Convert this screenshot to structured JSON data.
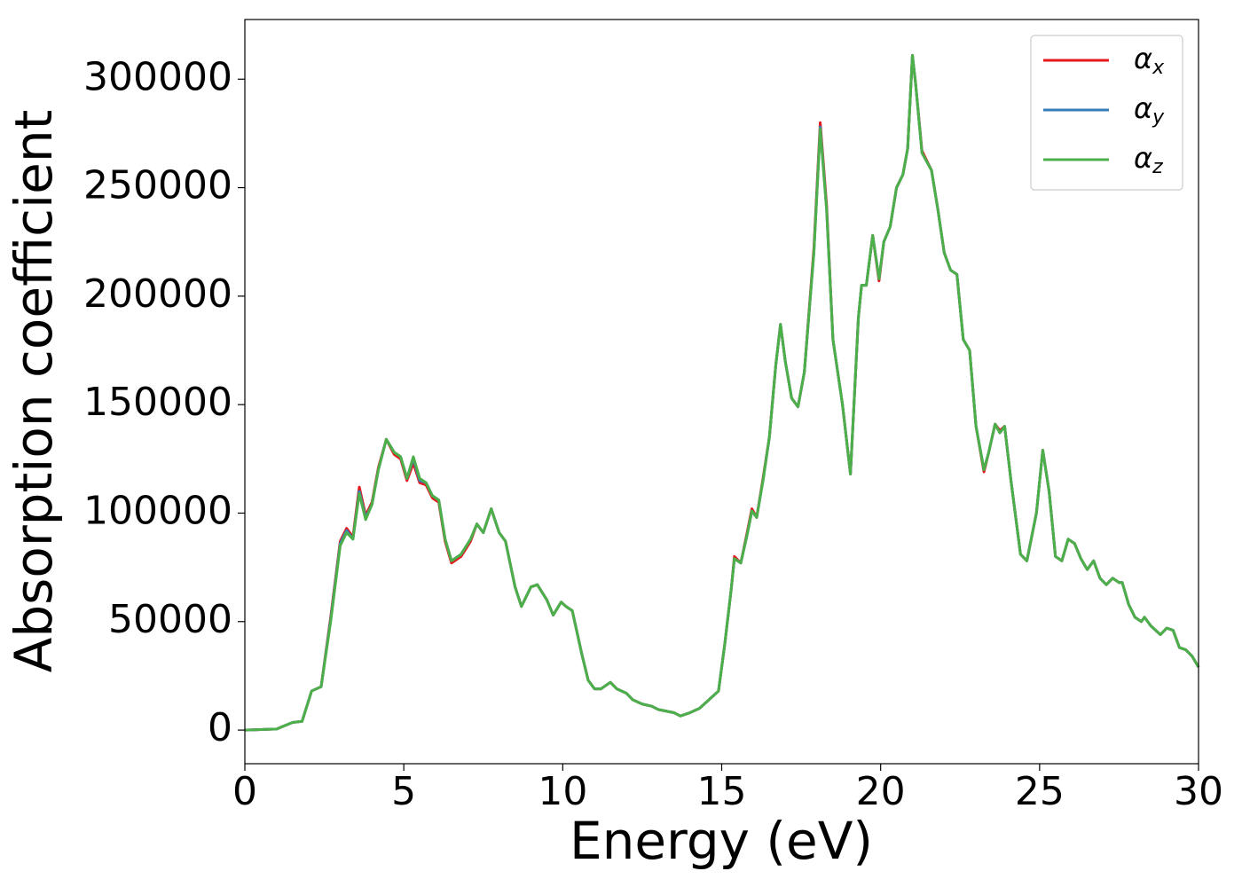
{
  "chart_data": {
    "type": "line",
    "xlabel": "Energy (eV)",
    "ylabel": "Absorption coefficient",
    "x": [
      0,
      1,
      1.5,
      1.8,
      2.1,
      2.4,
      2.7,
      3.0,
      3.2,
      3.4,
      3.6,
      3.8,
      4.0,
      4.2,
      4.45,
      4.7,
      4.9,
      5.1,
      5.3,
      5.5,
      5.7,
      5.9,
      6.1,
      6.3,
      6.5,
      6.8,
      7.1,
      7.3,
      7.5,
      7.75,
      8.0,
      8.2,
      8.5,
      8.7,
      9.0,
      9.2,
      9.5,
      9.7,
      9.95,
      10.1,
      10.3,
      10.6,
      10.8,
      11.0,
      11.2,
      11.5,
      11.7,
      12.0,
      12.2,
      12.5,
      12.8,
      13.0,
      13.5,
      13.7,
      14.0,
      14.3,
      14.6,
      14.9,
      15.1,
      15.3,
      15.4,
      15.6,
      15.8,
      15.95,
      16.1,
      16.3,
      16.5,
      16.7,
      16.85,
      17.0,
      17.2,
      17.4,
      17.6,
      17.9,
      18.1,
      18.3,
      18.5,
      18.8,
      19.05,
      19.3,
      19.4,
      19.55,
      19.75,
      19.95,
      20.1,
      20.3,
      20.5,
      20.7,
      20.85,
      21.0,
      21.1,
      21.3,
      21.6,
      21.8,
      22.0,
      22.2,
      22.4,
      22.6,
      22.8,
      23.0,
      23.25,
      23.4,
      23.6,
      23.75,
      23.9,
      24.1,
      24.4,
      24.6,
      24.9,
      25.1,
      25.3,
      25.5,
      25.7,
      25.9,
      26.1,
      26.3,
      26.5,
      26.7,
      26.9,
      27.1,
      27.3,
      27.5,
      27.6,
      27.8,
      28.0,
      28.2,
      28.3,
      28.5,
      28.8,
      29.0,
      29.2,
      29.4,
      29.6,
      29.8,
      30.0
    ],
    "series": [
      {
        "name": "αx",
        "color": "#e41a1c",
        "values": [
          0,
          500,
          3500,
          4000,
          18000,
          20000,
          52000,
          87000,
          93000,
          89000,
          112000,
          99000,
          105000,
          121000,
          134000,
          127000,
          125000,
          115000,
          123000,
          114000,
          113000,
          107000,
          105000,
          87000,
          77000,
          80000,
          87000,
          95000,
          91000,
          102000,
          91000,
          87000,
          66000,
          57000,
          66000,
          67000,
          60000,
          53000,
          59000,
          57000,
          55000,
          35000,
          23000,
          19000,
          19000,
          22000,
          19000,
          17000,
          14000,
          12000,
          11000,
          9500,
          8000,
          6500,
          8000,
          10000,
          14000,
          18000,
          40000,
          65000,
          80000,
          77000,
          91000,
          102000,
          98000,
          116000,
          135000,
          168000,
          187000,
          170000,
          153000,
          149000,
          165000,
          222000,
          280000,
          242000,
          180000,
          150000,
          118000,
          190000,
          205000,
          205000,
          228000,
          207000,
          225000,
          232000,
          250000,
          256000,
          268000,
          311000,
          298000,
          267000,
          258000,
          240000,
          220000,
          212000,
          210000,
          180000,
          175000,
          140000,
          119000,
          128000,
          141000,
          138000,
          140000,
          115000,
          81000,
          78000,
          100000,
          129000,
          110000,
          80000,
          78000,
          88000,
          86000,
          79000,
          74000,
          78000,
          70000,
          67000,
          70000,
          68000,
          68000,
          58000,
          52000,
          50000,
          52000,
          48000,
          44000,
          47000,
          46000,
          38000,
          37000,
          34000,
          29000
        ]
      },
      {
        "name": "αy",
        "color": "#377eb8",
        "values": [
          0,
          500,
          3500,
          4000,
          18000,
          20000,
          51000,
          86000,
          92000,
          88000,
          110000,
          98000,
          104000,
          120000,
          134000,
          128000,
          126000,
          116000,
          125000,
          115000,
          114000,
          108000,
          106000,
          88000,
          78000,
          81000,
          88000,
          95000,
          91000,
          102000,
          91000,
          87000,
          66000,
          57000,
          66000,
          67000,
          60000,
          53000,
          59000,
          57000,
          55000,
          35000,
          23000,
          19000,
          19000,
          22000,
          19000,
          17000,
          14000,
          12000,
          11000,
          9500,
          8000,
          6500,
          8000,
          10000,
          14000,
          18000,
          40000,
          65000,
          79000,
          77000,
          90000,
          101000,
          98000,
          115000,
          135000,
          168000,
          187000,
          170000,
          153000,
          149000,
          165000,
          220000,
          278000,
          240000,
          180000,
          150000,
          118000,
          190000,
          205000,
          205000,
          228000,
          208000,
          225000,
          232000,
          250000,
          256000,
          268000,
          311000,
          298000,
          266000,
          258000,
          240000,
          220000,
          212000,
          210000,
          180000,
          175000,
          140000,
          120000,
          128000,
          141000,
          137000,
          140000,
          115000,
          81000,
          78000,
          100000,
          129000,
          110000,
          80000,
          78000,
          88000,
          86000,
          79000,
          74000,
          78000,
          70000,
          67000,
          70000,
          68000,
          68000,
          58000,
          52000,
          50000,
          52000,
          48000,
          44000,
          47000,
          46000,
          38000,
          37000,
          34000,
          29000
        ]
      },
      {
        "name": "αz",
        "color": "#4daf4a",
        "values": [
          0,
          500,
          3500,
          4000,
          18000,
          20000,
          50000,
          85000,
          91000,
          88000,
          109000,
          97000,
          104000,
          120000,
          134000,
          128000,
          126000,
          116000,
          126000,
          116000,
          114000,
          108000,
          106000,
          88000,
          78000,
          81000,
          88000,
          95000,
          91000,
          102000,
          91000,
          87000,
          66000,
          57000,
          66000,
          67000,
          60000,
          53000,
          59000,
          57000,
          55000,
          35000,
          23000,
          19000,
          19000,
          22000,
          19000,
          17000,
          14000,
          12000,
          11000,
          9500,
          8000,
          6500,
          8000,
          10000,
          14000,
          18000,
          40000,
          65000,
          79000,
          77000,
          90000,
          101000,
          98000,
          115000,
          135000,
          168000,
          187000,
          170000,
          153000,
          149000,
          165000,
          220000,
          277000,
          240000,
          180000,
          150000,
          118000,
          190000,
          205000,
          205000,
          228000,
          208000,
          225000,
          232000,
          250000,
          256000,
          268000,
          311000,
          298000,
          266000,
          258000,
          240000,
          220000,
          212000,
          210000,
          180000,
          175000,
          140000,
          120000,
          128000,
          141000,
          137000,
          140000,
          115000,
          81000,
          78000,
          100000,
          129000,
          110000,
          80000,
          78000,
          88000,
          86000,
          79000,
          74000,
          78000,
          70000,
          67000,
          70000,
          68000,
          68000,
          58000,
          52000,
          50000,
          52000,
          48000,
          44000,
          47000,
          46000,
          38000,
          37000,
          34000,
          29000
        ]
      }
    ],
    "xlim": [
      0,
      30
    ],
    "xticks": [
      0,
      5,
      10,
      15,
      20,
      25,
      30
    ],
    "ylim": [
      -15500,
      327500
    ],
    "yticks": [
      0,
      50000,
      100000,
      150000,
      200000,
      250000,
      300000
    ],
    "legend": "upper right"
  }
}
